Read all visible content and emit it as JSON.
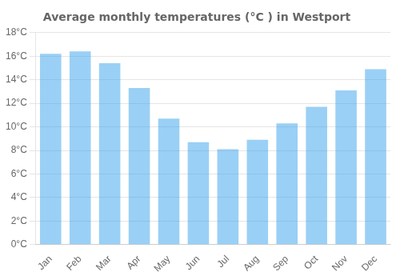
{
  "chart_data": {
    "type": "bar",
    "title": "Average monthly temperatures (°C ) in Westport",
    "categories": [
      "Jan",
      "Feb",
      "Mar",
      "Apr",
      "May",
      "Jun",
      "Jul",
      "Aug",
      "Sep",
      "Oct",
      "Nov",
      "Dec"
    ],
    "values": [
      16.2,
      16.4,
      15.4,
      13.3,
      10.7,
      8.7,
      8.1,
      8.9,
      10.3,
      11.7,
      13.1,
      14.9
    ],
    "ylim": [
      0,
      18
    ],
    "yticks": [
      {
        "value": 0,
        "label": "0°C"
      },
      {
        "value": 2,
        "label": "2°C"
      },
      {
        "value": 4,
        "label": "4°C"
      },
      {
        "value": 6,
        "label": "6°C"
      },
      {
        "value": 8,
        "label": "8°C"
      },
      {
        "value": 10,
        "label": "10°C"
      },
      {
        "value": 12,
        "label": "12°C"
      },
      {
        "value": 14,
        "label": "14°C"
      },
      {
        "value": 16,
        "label": "16°C"
      },
      {
        "value": 18,
        "label": "18°C"
      }
    ],
    "grid": true
  }
}
